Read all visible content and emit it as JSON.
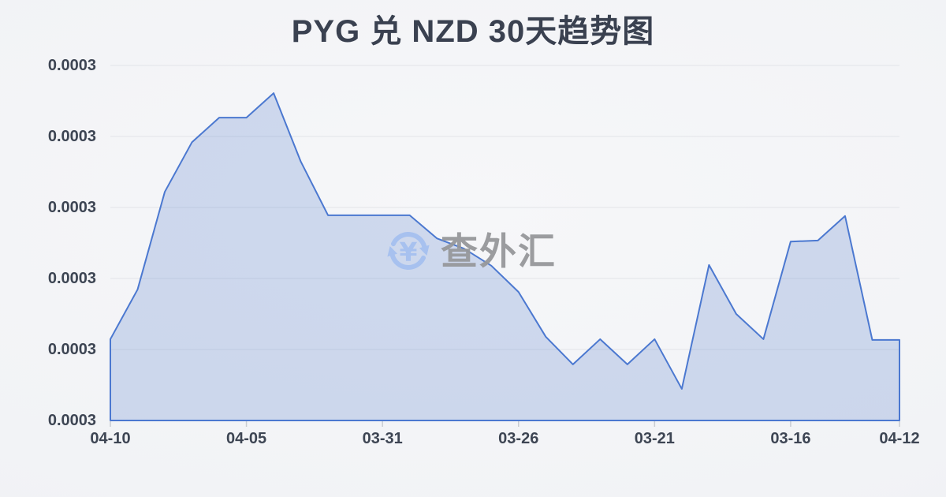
{
  "page": {
    "title": "PYG 兑 NZD 30天趋势图"
  },
  "watermark": {
    "text": "查外汇",
    "icon": "yen-refresh-icon"
  },
  "chart_data": {
    "type": "area",
    "title": "PYG 兑 NZD 30天趋势图",
    "series_name": "PYG/NZD",
    "x_tick_labels": [
      "04-10",
      "04-05",
      "03-31",
      "03-26",
      "03-21",
      "03-16",
      "04-12"
    ],
    "x_tick_point_indices": [
      0,
      5,
      10,
      15,
      20,
      25,
      29
    ],
    "y_tick_labels": [
      "0.0003",
      "0.0003",
      "0.0003",
      "0.0003",
      "0.0003",
      "0.0003"
    ],
    "y_axis_display_note": "every gridline label shows the same rounded value 0.0003",
    "approx_value_all_points": 0.0003,
    "n_points": 30,
    "values_norm_plot_height": [
      0.229,
      0.369,
      0.644,
      0.784,
      0.853,
      0.853,
      0.922,
      0.729,
      0.578,
      0.578,
      0.578,
      0.578,
      0.513,
      0.484,
      0.436,
      0.362,
      0.236,
      0.158,
      0.229,
      0.158,
      0.229,
      0.089,
      0.438,
      0.3,
      0.229,
      0.504,
      0.507,
      0.576,
      0.227,
      0.227
    ],
    "grid": true,
    "legend": false,
    "colors": {
      "line": "#4b78d0",
      "fill": "rgba(88,127,205,0.25)",
      "grid": "#e2e4e8",
      "tick": "#c9ccd2",
      "axis_text": "#3d4553",
      "title_text": "#3a4150",
      "watermark_text": "#97989b",
      "watermark_icon": "#a5c0f0"
    }
  }
}
